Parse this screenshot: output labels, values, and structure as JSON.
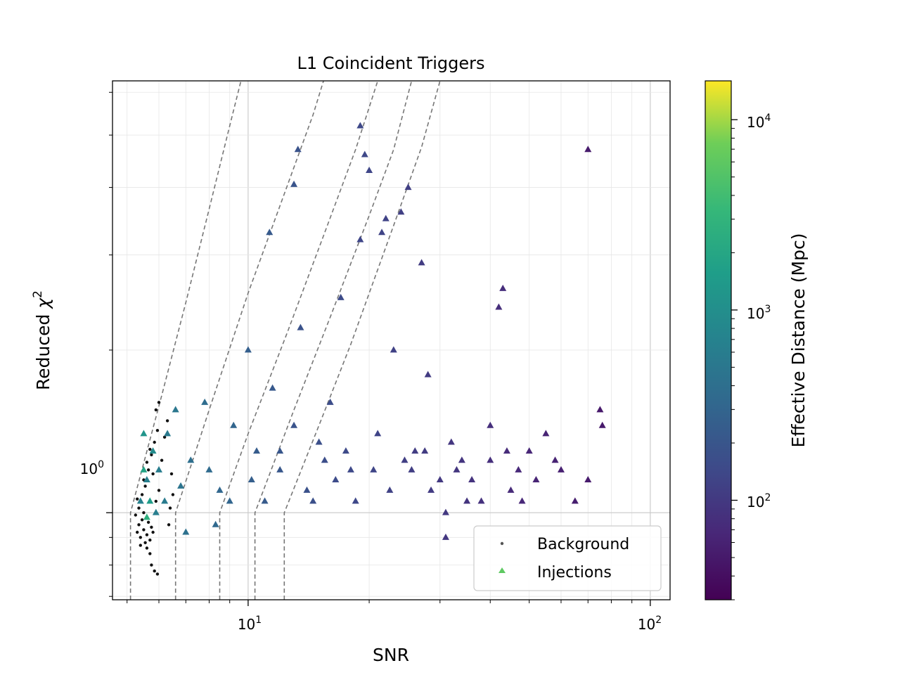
{
  "chart_data": {
    "type": "scatter",
    "title": "L1 Coincident Triggers",
    "xlabel": "SNR",
    "ylabel_base": "Reduced ",
    "ylabel_symbol": "χ",
    "ylabel_sup": "2",
    "x_scale": "log",
    "y_scale": "log",
    "xlim": [
      4.6,
      112
    ],
    "ylim": [
      0.69,
      6.3
    ],
    "x_tick_labels": [
      {
        "value": 10,
        "base": "10",
        "exp": "1"
      },
      {
        "value": 100,
        "base": "10",
        "exp": "2"
      }
    ],
    "y_tick_labels": [
      {
        "value": 1,
        "base": "10",
        "exp": "0"
      }
    ],
    "grid": true,
    "legend": {
      "placement": "lower-right",
      "entries": [
        {
          "label": "Background",
          "marker": "dot",
          "color": "#555555"
        },
        {
          "label": "Injections",
          "marker": "triangle",
          "color": "#5ec962"
        }
      ]
    },
    "colorbar": {
      "label": "Effective Distance (Mpc)",
      "scale": "log",
      "range": [
        30,
        16000
      ],
      "colormap": "viridis",
      "tick_labels": [
        {
          "value": 100,
          "base": "10",
          "exp": "2"
        },
        {
          "value": 1000,
          "base": "10",
          "exp": "3"
        },
        {
          "value": 10000,
          "base": "10",
          "exp": "4"
        }
      ]
    },
    "threshold_curves": [
      {
        "snr_cut": 5.1,
        "points": [
          [
            5.1,
            0.69
          ],
          [
            5.1,
            1.0
          ],
          [
            6.1,
            1.65
          ],
          [
            7.0,
            2.45
          ],
          [
            8.0,
            3.65
          ],
          [
            9.0,
            5.2
          ],
          [
            9.6,
            6.3
          ]
        ]
      },
      {
        "snr_cut": 6.6,
        "points": [
          [
            6.6,
            0.69
          ],
          [
            6.6,
            1.0
          ],
          [
            8.0,
            1.55
          ],
          [
            10.0,
            2.55
          ],
          [
            12.0,
            3.7
          ],
          [
            14.5,
            5.45
          ],
          [
            15.4,
            6.3
          ]
        ]
      },
      {
        "snr_cut": 8.5,
        "points": [
          [
            8.5,
            0.69
          ],
          [
            8.5,
            1.0
          ],
          [
            10.0,
            1.4
          ],
          [
            12.5,
            2.15
          ],
          [
            15.5,
            3.3
          ],
          [
            18.5,
            4.7
          ],
          [
            21.0,
            6.3
          ]
        ]
      },
      {
        "snr_cut": 10.4,
        "points": [
          [
            10.4,
            0.69
          ],
          [
            10.4,
            1.0
          ],
          [
            13.0,
            1.55
          ],
          [
            16.0,
            2.3
          ],
          [
            20.0,
            3.55
          ],
          [
            23.0,
            4.7
          ],
          [
            25.5,
            6.3
          ]
        ]
      },
      {
        "snr_cut": 12.3,
        "points": [
          [
            12.3,
            0.69
          ],
          [
            12.3,
            1.0
          ],
          [
            15.0,
            1.45
          ],
          [
            18.0,
            2.05
          ],
          [
            23.0,
            3.4
          ],
          [
            27.0,
            4.75
          ],
          [
            30.0,
            6.3
          ]
        ]
      }
    ],
    "series": [
      {
        "name": "Background",
        "marker": "dot",
        "points": [
          [
            5.3,
            0.92
          ],
          [
            5.35,
            0.95
          ],
          [
            5.4,
            0.9
          ],
          [
            5.45,
            0.97
          ],
          [
            5.5,
            0.93
          ],
          [
            5.55,
            0.88
          ],
          [
            5.6,
            0.91
          ],
          [
            5.65,
            0.96
          ],
          [
            5.7,
            0.89
          ],
          [
            5.75,
            0.94
          ],
          [
            5.8,
            0.92
          ],
          [
            5.35,
            1.02
          ],
          [
            5.45,
            1.08
          ],
          [
            5.55,
            1.12
          ],
          [
            5.65,
            1.2
          ],
          [
            5.75,
            1.28
          ],
          [
            5.85,
            1.35
          ],
          [
            5.95,
            1.42
          ],
          [
            5.5,
            1.15
          ],
          [
            5.6,
            1.24
          ],
          [
            5.7,
            1.31
          ],
          [
            5.8,
            1.18
          ],
          [
            5.9,
            1.05
          ],
          [
            6.0,
            1.1
          ],
          [
            6.1,
            1.25
          ],
          [
            6.2,
            1.38
          ],
          [
            6.3,
            1.48
          ],
          [
            6.0,
            1.6
          ],
          [
            5.9,
            1.55
          ],
          [
            5.6,
            0.86
          ],
          [
            5.7,
            0.84
          ],
          [
            5.75,
            0.8
          ],
          [
            5.85,
            0.78
          ],
          [
            5.95,
            0.77
          ],
          [
            5.4,
            0.87
          ],
          [
            6.4,
            1.02
          ],
          [
            6.5,
            1.08
          ],
          [
            6.45,
            1.18
          ],
          [
            6.35,
            0.95
          ],
          [
            5.3,
            1.06
          ],
          [
            5.25,
            0.99
          ],
          [
            5.5,
            1.0
          ]
        ]
      },
      {
        "name": "Injections",
        "marker": "triangle",
        "points": [
          [
            5.4,
            1.05,
            700
          ],
          [
            5.6,
            1.15,
            650
          ],
          [
            5.8,
            1.3,
            900
          ],
          [
            6.0,
            1.2,
            600
          ],
          [
            6.3,
            1.4,
            550
          ],
          [
            6.6,
            1.55,
            500
          ],
          [
            7.2,
            1.25,
            400
          ],
          [
            7.8,
            1.6,
            380
          ],
          [
            8.5,
            1.1,
            320
          ],
          [
            9.2,
            1.45,
            300
          ],
          [
            10.0,
            2.0,
            260
          ],
          [
            10.5,
            1.3,
            240
          ],
          [
            11.0,
            1.05,
            230
          ],
          [
            11.5,
            1.7,
            220
          ],
          [
            12.0,
            1.2,
            210
          ],
          [
            13.0,
            1.45,
            190
          ],
          [
            14.0,
            1.1,
            180
          ],
          [
            15.0,
            1.35,
            170
          ],
          [
            16.0,
            1.6,
            160
          ],
          [
            17.0,
            2.5,
            150
          ],
          [
            18.0,
            1.2,
            145
          ],
          [
            19.0,
            5.2,
            140
          ],
          [
            19.5,
            4.6,
            140
          ],
          [
            20.0,
            4.3,
            135
          ],
          [
            19.0,
            3.2,
            135
          ],
          [
            21.0,
            1.4,
            130
          ],
          [
            22.0,
            3.5,
            125
          ],
          [
            23.0,
            2.0,
            120
          ],
          [
            24.0,
            3.6,
            118
          ],
          [
            25.0,
            4.0,
            115
          ],
          [
            26.0,
            1.3,
            110
          ],
          [
            27.0,
            2.9,
            108
          ],
          [
            28.0,
            1.8,
            105
          ],
          [
            30.0,
            1.15,
            100
          ],
          [
            32.0,
            1.35,
            95
          ],
          [
            35.0,
            1.05,
            90
          ],
          [
            40.0,
            1.25,
            80
          ],
          [
            42.0,
            2.4,
            78
          ],
          [
            43.0,
            2.6,
            76
          ],
          [
            45.0,
            1.1,
            72
          ],
          [
            50.0,
            1.3,
            66
          ],
          [
            55.0,
            1.4,
            62
          ],
          [
            60.0,
            1.2,
            58
          ],
          [
            70.0,
            4.7,
            52
          ],
          [
            75.0,
            1.55,
            50
          ],
          [
            76.0,
            1.45,
            50
          ],
          [
            70.0,
            1.15,
            52
          ],
          [
            65.0,
            1.05,
            55
          ],
          [
            8.0,
            1.2,
            360
          ],
          [
            9.0,
            1.05,
            310
          ],
          [
            12.0,
            1.3,
            205
          ],
          [
            13.5,
            2.2,
            185
          ],
          [
            14.5,
            1.05,
            175
          ],
          [
            16.5,
            1.15,
            158
          ],
          [
            18.5,
            1.05,
            142
          ],
          [
            22.5,
            1.1,
            122
          ],
          [
            25.5,
            1.2,
            112
          ],
          [
            28.5,
            1.1,
            104
          ],
          [
            31.0,
            1.0,
            98
          ],
          [
            33.0,
            1.2,
            93
          ],
          [
            36.0,
            1.15,
            88
          ],
          [
            38.0,
            1.05,
            84
          ],
          [
            47.0,
            1.2,
            70
          ],
          [
            52.0,
            1.15,
            64
          ],
          [
            11.3,
            3.3,
            225
          ],
          [
            13.3,
            4.7,
            190
          ],
          [
            13.0,
            4.05,
            195
          ],
          [
            21.5,
            3.3,
            128
          ],
          [
            31.0,
            0.9,
            96
          ],
          [
            7.0,
            0.92,
            420
          ],
          [
            8.3,
            0.95,
            340
          ],
          [
            6.2,
            1.05,
            560
          ],
          [
            5.9,
            1.0,
            620
          ],
          [
            6.8,
            1.12,
            460
          ],
          [
            10.2,
            1.15,
            255
          ],
          [
            15.5,
            1.25,
            165
          ],
          [
            17.5,
            1.3,
            148
          ],
          [
            20.5,
            1.2,
            132
          ],
          [
            24.5,
            1.25,
            116
          ],
          [
            27.5,
            1.3,
            107
          ],
          [
            34.0,
            1.25,
            92
          ],
          [
            40.0,
            1.45,
            80
          ],
          [
            44.0,
            1.3,
            74
          ],
          [
            48.0,
            1.05,
            68
          ],
          [
            58.0,
            1.25,
            60
          ],
          [
            5.5,
            1.4,
            1200
          ],
          [
            5.7,
            1.05,
            1500
          ],
          [
            5.6,
            0.98,
            2600
          ],
          [
            5.5,
            1.2,
            1800
          ]
        ]
      }
    ]
  }
}
